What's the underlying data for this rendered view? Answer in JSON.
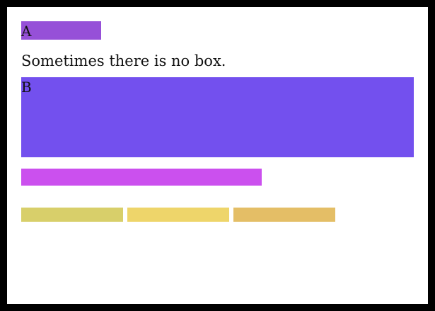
{
  "box_a": {
    "label": "A",
    "color": "#9650d8"
  },
  "caption": "Sometimes there is no box.",
  "box_b": {
    "label": "B",
    "color": "#7350ee"
  },
  "bar": {
    "color": "#cb50ee"
  },
  "row_segments": [
    {
      "color": "#d8cf6a"
    },
    {
      "color": "#eed56a"
    },
    {
      "color": "#e4be66"
    }
  ]
}
